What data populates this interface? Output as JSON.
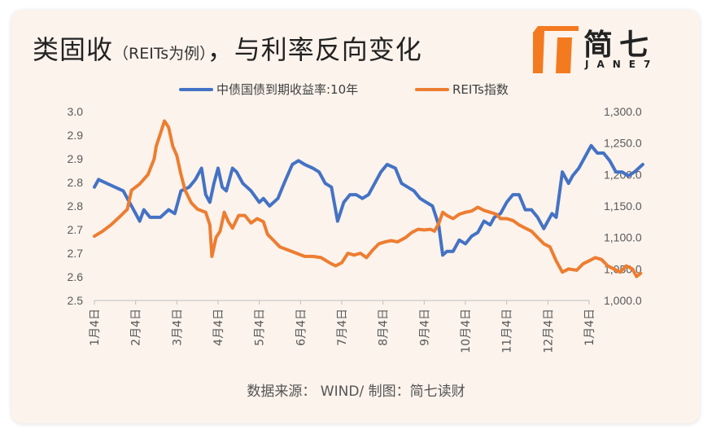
{
  "title": {
    "main": "类固收",
    "sub": "（REITs为例）",
    "rest": "，与利率反向变化"
  },
  "logo": {
    "text": "简七",
    "sub": "JANE7",
    "color": "#f47a20"
  },
  "source": "数据来源： WIND/ 制图：简七读财",
  "chart_data": {
    "type": "line",
    "x_ticks": [
      "1月4日",
      "2月4日",
      "3月4日",
      "4月4日",
      "5月4日",
      "6月4日",
      "7月4日",
      "8月4日",
      "9月4日",
      "10月4日",
      "11月4日",
      "12月4日",
      "1月4日"
    ],
    "y_left": {
      "ticks": [
        "2.5",
        "2.6",
        "2.7",
        "2.7",
        "2.8",
        "2.8",
        "2.9",
        "2.9",
        "3.0"
      ],
      "ylim": [
        2.5,
        3.0
      ]
    },
    "y_right": {
      "ticks": [
        "1,000.0",
        "1,050.0",
        "1,100.0",
        "1,150.0",
        "1,200.0",
        "1,250.0",
        "1,300.0"
      ],
      "ylim": [
        1000,
        1300
      ]
    },
    "legend": {
      "position": "top"
    },
    "series": [
      {
        "name": "中债国债到期收益率:10年",
        "color": "#4472c4",
        "axis": "left",
        "points": [
          [
            0.0,
            2.8
          ],
          [
            0.1,
            2.82
          ],
          [
            0.3,
            2.81
          ],
          [
            0.5,
            2.8
          ],
          [
            0.7,
            2.79
          ],
          [
            0.85,
            2.76
          ],
          [
            1.0,
            2.73
          ],
          [
            1.1,
            2.71
          ],
          [
            1.2,
            2.74
          ],
          [
            1.35,
            2.72
          ],
          [
            1.6,
            2.72
          ],
          [
            1.8,
            2.74
          ],
          [
            1.95,
            2.73
          ],
          [
            2.1,
            2.79
          ],
          [
            2.3,
            2.8
          ],
          [
            2.45,
            2.82
          ],
          [
            2.6,
            2.85
          ],
          [
            2.7,
            2.78
          ],
          [
            2.8,
            2.76
          ],
          [
            2.9,
            2.81
          ],
          [
            3.0,
            2.85
          ],
          [
            3.1,
            2.8
          ],
          [
            3.2,
            2.79
          ],
          [
            3.35,
            2.85
          ],
          [
            3.45,
            2.84
          ],
          [
            3.6,
            2.81
          ],
          [
            3.8,
            2.79
          ],
          [
            4.0,
            2.76
          ],
          [
            4.1,
            2.77
          ],
          [
            4.25,
            2.75
          ],
          [
            4.45,
            2.77
          ],
          [
            4.6,
            2.81
          ],
          [
            4.8,
            2.86
          ],
          [
            4.95,
            2.87
          ],
          [
            5.1,
            2.86
          ],
          [
            5.3,
            2.85
          ],
          [
            5.45,
            2.84
          ],
          [
            5.6,
            2.81
          ],
          [
            5.75,
            2.8
          ],
          [
            5.9,
            2.71
          ],
          [
            6.05,
            2.76
          ],
          [
            6.2,
            2.78
          ],
          [
            6.35,
            2.78
          ],
          [
            6.5,
            2.77
          ],
          [
            6.65,
            2.78
          ],
          [
            6.8,
            2.81
          ],
          [
            6.95,
            2.84
          ],
          [
            7.1,
            2.86
          ],
          [
            7.3,
            2.85
          ],
          [
            7.45,
            2.81
          ],
          [
            7.6,
            2.8
          ],
          [
            7.75,
            2.79
          ],
          [
            7.9,
            2.77
          ],
          [
            8.05,
            2.76
          ],
          [
            8.2,
            2.75
          ],
          [
            8.35,
            2.7
          ],
          [
            8.45,
            2.62
          ],
          [
            8.55,
            2.63
          ],
          [
            8.7,
            2.63
          ],
          [
            8.85,
            2.66
          ],
          [
            9.0,
            2.65
          ],
          [
            9.15,
            2.67
          ],
          [
            9.3,
            2.68
          ],
          [
            9.45,
            2.71
          ],
          [
            9.6,
            2.7
          ],
          [
            9.7,
            2.72
          ],
          [
            9.85,
            2.73
          ],
          [
            10.0,
            2.76
          ],
          [
            10.15,
            2.78
          ],
          [
            10.3,
            2.78
          ],
          [
            10.45,
            2.74
          ],
          [
            10.6,
            2.74
          ],
          [
            10.75,
            2.72
          ],
          [
            10.9,
            2.69
          ],
          [
            11.0,
            2.71
          ],
          [
            11.1,
            2.73
          ],
          [
            11.2,
            2.72
          ],
          [
            11.35,
            2.84
          ],
          [
            11.5,
            2.81
          ],
          [
            11.6,
            2.83
          ],
          [
            11.75,
            2.85
          ],
          [
            11.9,
            2.88
          ],
          [
            12.05,
            2.91
          ],
          [
            12.2,
            2.89
          ],
          [
            12.35,
            2.89
          ],
          [
            12.5,
            2.87
          ],
          [
            12.65,
            2.84
          ],
          [
            12.8,
            2.84
          ],
          [
            12.95,
            2.83
          ],
          [
            13.1,
            2.84
          ],
          [
            13.2,
            2.85
          ],
          [
            13.3,
            2.86
          ]
        ]
      },
      {
        "name": "REITs指数",
        "color": "#ed7d31",
        "axis": "right",
        "points": [
          [
            0.0,
            1102
          ],
          [
            0.2,
            1110
          ],
          [
            0.4,
            1120
          ],
          [
            0.6,
            1132
          ],
          [
            0.8,
            1145
          ],
          [
            0.9,
            1175
          ],
          [
            1.0,
            1180
          ],
          [
            1.1,
            1185
          ],
          [
            1.3,
            1200
          ],
          [
            1.45,
            1225
          ],
          [
            1.5,
            1245
          ],
          [
            1.6,
            1265
          ],
          [
            1.7,
            1285
          ],
          [
            1.8,
            1275
          ],
          [
            1.9,
            1245
          ],
          [
            2.0,
            1230
          ],
          [
            2.1,
            1200
          ],
          [
            2.2,
            1175
          ],
          [
            2.35,
            1155
          ],
          [
            2.5,
            1145
          ],
          [
            2.7,
            1140
          ],
          [
            2.8,
            1120
          ],
          [
            2.85,
            1070
          ],
          [
            2.95,
            1100
          ],
          [
            3.05,
            1110
          ],
          [
            3.15,
            1140
          ],
          [
            3.25,
            1125
          ],
          [
            3.35,
            1115
          ],
          [
            3.5,
            1135
          ],
          [
            3.65,
            1135
          ],
          [
            3.8,
            1123
          ],
          [
            3.95,
            1130
          ],
          [
            4.1,
            1125
          ],
          [
            4.2,
            1105
          ],
          [
            4.35,
            1095
          ],
          [
            4.5,
            1085
          ],
          [
            4.7,
            1080
          ],
          [
            4.9,
            1075
          ],
          [
            5.1,
            1070
          ],
          [
            5.3,
            1070
          ],
          [
            5.5,
            1068
          ],
          [
            5.7,
            1060
          ],
          [
            5.85,
            1055
          ],
          [
            6.0,
            1060
          ],
          [
            6.15,
            1075
          ],
          [
            6.3,
            1072
          ],
          [
            6.45,
            1075
          ],
          [
            6.6,
            1068
          ],
          [
            6.75,
            1080
          ],
          [
            6.9,
            1090
          ],
          [
            7.05,
            1093
          ],
          [
            7.2,
            1095
          ],
          [
            7.35,
            1093
          ],
          [
            7.55,
            1100
          ],
          [
            7.7,
            1108
          ],
          [
            7.85,
            1113
          ],
          [
            8.0,
            1112
          ],
          [
            8.15,
            1113
          ],
          [
            8.25,
            1110
          ],
          [
            8.35,
            1122
          ],
          [
            8.45,
            1140
          ],
          [
            8.55,
            1135
          ],
          [
            8.7,
            1130
          ],
          [
            8.85,
            1137
          ],
          [
            9.0,
            1140
          ],
          [
            9.15,
            1142
          ],
          [
            9.3,
            1148
          ],
          [
            9.45,
            1143
          ],
          [
            9.6,
            1140
          ],
          [
            9.75,
            1137
          ],
          [
            9.85,
            1130
          ],
          [
            10.0,
            1130
          ],
          [
            10.15,
            1127
          ],
          [
            10.3,
            1120
          ],
          [
            10.45,
            1115
          ],
          [
            10.6,
            1110
          ],
          [
            10.75,
            1100
          ],
          [
            10.9,
            1090
          ],
          [
            11.05,
            1085
          ],
          [
            11.2,
            1063
          ],
          [
            11.35,
            1045
          ],
          [
            11.5,
            1050
          ],
          [
            11.7,
            1048
          ],
          [
            11.85,
            1058
          ],
          [
            12.0,
            1063
          ],
          [
            12.15,
            1068
          ],
          [
            12.3,
            1065
          ],
          [
            12.45,
            1055
          ],
          [
            12.6,
            1050
          ],
          [
            12.75,
            1045
          ],
          [
            12.9,
            1055
          ],
          [
            13.05,
            1050
          ],
          [
            13.15,
            1038
          ],
          [
            13.25,
            1043
          ]
        ]
      }
    ]
  }
}
